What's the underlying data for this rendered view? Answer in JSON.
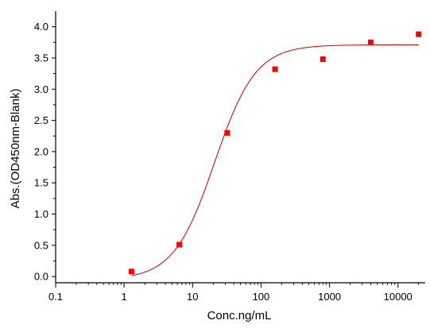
{
  "chart_data": {
    "type": "scatter",
    "title": "",
    "xlabel": "Conc.ng/mL",
    "ylabel": "Abs.(OD450nm-Blank)",
    "x_scale": "log",
    "xlim": [
      0.1,
      25000
    ],
    "ylim": [
      -0.1,
      4.25
    ],
    "x_ticks": [
      0.1,
      1,
      10,
      100,
      1000,
      10000
    ],
    "x_tick_labels": [
      "0.1",
      "1",
      "10",
      "100",
      "1000",
      "10000"
    ],
    "y_ticks": [
      0.0,
      0.5,
      1.0,
      1.5,
      2.0,
      2.5,
      3.0,
      3.5,
      4.0
    ],
    "y_tick_labels": [
      "0.0",
      "0.5",
      "1.0",
      "1.5",
      "2.0",
      "2.5",
      "3.0",
      "3.5",
      "4.0"
    ],
    "grid": false,
    "series": [
      {
        "kind": "points",
        "marker": "square",
        "color": "#ff0000",
        "x": [
          1.28,
          6.4,
          32,
          160,
          800,
          4000,
          20000
        ],
        "y": [
          0.08,
          0.51,
          2.3,
          3.32,
          3.48,
          3.75,
          3.88
        ]
      },
      {
        "kind": "fit-curve",
        "model": "4PL",
        "color": "#cc0000",
        "params": {
          "bottom": -0.05,
          "top": 3.71,
          "ec50": 21,
          "hill": 1.45
        },
        "x_range": [
          1.28,
          20000
        ]
      }
    ]
  }
}
